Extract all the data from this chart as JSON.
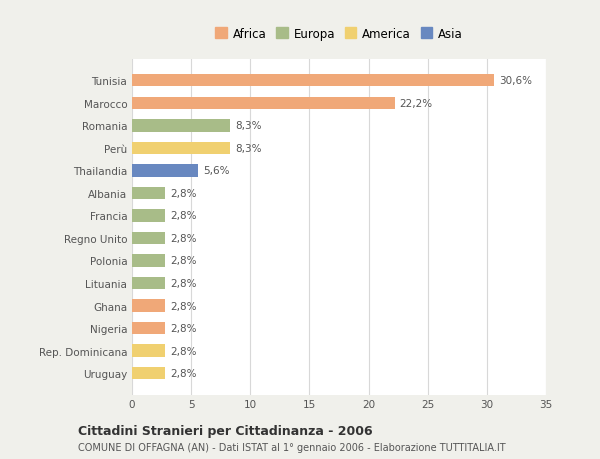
{
  "countries": [
    "Tunisia",
    "Marocco",
    "Romania",
    "Perù",
    "Thailandia",
    "Albania",
    "Francia",
    "Regno Unito",
    "Polonia",
    "Lituania",
    "Ghana",
    "Nigeria",
    "Rep. Dominicana",
    "Uruguay"
  ],
  "values": [
    30.6,
    22.2,
    8.3,
    8.3,
    5.6,
    2.8,
    2.8,
    2.8,
    2.8,
    2.8,
    2.8,
    2.8,
    2.8,
    2.8
  ],
  "labels": [
    "30,6%",
    "22,2%",
    "8,3%",
    "8,3%",
    "5,6%",
    "2,8%",
    "2,8%",
    "2,8%",
    "2,8%",
    "2,8%",
    "2,8%",
    "2,8%",
    "2,8%",
    "2,8%"
  ],
  "colors": [
    "#f0a878",
    "#f0a878",
    "#a8bc88",
    "#f0d070",
    "#6888c0",
    "#a8bc88",
    "#a8bc88",
    "#a8bc88",
    "#a8bc88",
    "#a8bc88",
    "#f0a878",
    "#f0a878",
    "#f0d070",
    "#f0d070"
  ],
  "legend": [
    {
      "label": "Africa",
      "color": "#f0a878"
    },
    {
      "label": "Europa",
      "color": "#a8bc88"
    },
    {
      "label": "America",
      "color": "#f0d070"
    },
    {
      "label": "Asia",
      "color": "#6888c0"
    }
  ],
  "title": "Cittadini Stranieri per Cittadinanza - 2006",
  "subtitle": "COMUNE DI OFFAGNA (AN) - Dati ISTAT al 1° gennaio 2006 - Elaborazione TUTTITALIA.IT",
  "xlim": [
    0,
    35
  ],
  "xticks": [
    0,
    5,
    10,
    15,
    20,
    25,
    30,
    35
  ],
  "background_color": "#f0f0eb",
  "bar_background": "#ffffff",
  "grid_color": "#d8d8d8",
  "label_fontsize": 7.5,
  "tick_fontsize": 7.5,
  "legend_fontsize": 8.5,
  "title_fontsize": 9.0,
  "subtitle_fontsize": 7.0
}
